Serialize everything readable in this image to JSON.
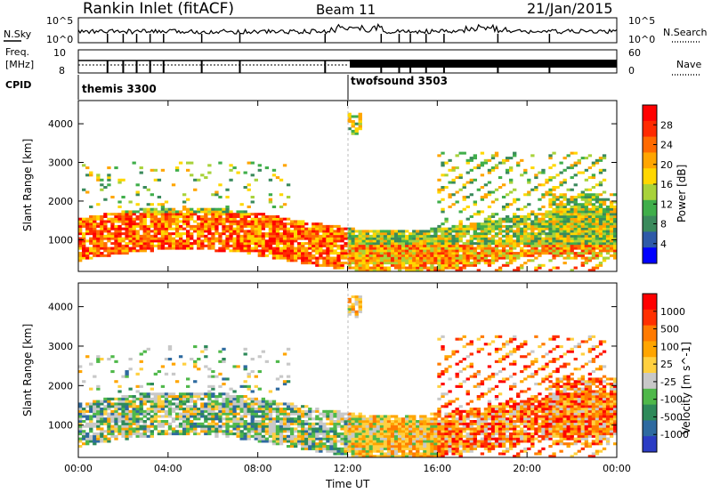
{
  "header": {
    "station": "Rankin Inlet (fitACF)",
    "beam": "Beam 11",
    "date": "21/Jan/2015"
  },
  "top_panels": {
    "nsky_label": "N.Sky",
    "nsky_ticks": [
      "10^5",
      "10^0"
    ],
    "nsearch_label": "N.Search",
    "nsearch_ticks": [
      "10^5",
      "10^0"
    ],
    "freq_label": "Freq.",
    "freq_unit": "[MHz]",
    "freq_ticks": [
      "10",
      "8"
    ],
    "nave_label": "Nave",
    "nave_ticks": [
      "60",
      "0"
    ],
    "cpid_label": "CPID",
    "cpid_modes": [
      {
        "name": "themis 3300",
        "start_hour": 0,
        "end_hour": 12
      },
      {
        "name": "twofsound 3503",
        "start_hour": 12,
        "end_hour": 24
      }
    ]
  },
  "colors": {
    "power_scale": [
      "#0000ff",
      "#2e5aa8",
      "#3a8a5c",
      "#3fae4a",
      "#a8d23a",
      "#ffd700",
      "#ffa500",
      "#ff6a00",
      "#ff2a00",
      "#ff0000"
    ],
    "velocity_scale": [
      "#2b3cc4",
      "#2e6aa0",
      "#2e8a5a",
      "#4fb84a",
      "#c8c8c8",
      "#ffd040",
      "#ffa500",
      "#ff7a00",
      "#ff3000",
      "#ff0000"
    ]
  },
  "chart_data": [
    {
      "type": "heatmap",
      "panel": "power",
      "ylabel": "Slant Range [km]",
      "xlabel": "Time UT",
      "x_ticks": [
        "00:00",
        "04:00",
        "08:00",
        "12:00",
        "16:00",
        "20:00",
        "00:00"
      ],
      "xlim_hours": [
        0,
        24
      ],
      "y_ticks": [
        1000,
        2000,
        3000,
        4000
      ],
      "ylim_km": [
        180,
        4600
      ],
      "colorbar": {
        "label": "Power [dB]",
        "ticks": [
          "28",
          "24",
          "20",
          "16",
          "12",
          "8",
          "4"
        ],
        "range": [
          0,
          30
        ]
      }
    },
    {
      "type": "heatmap",
      "panel": "velocity",
      "ylabel": "Slant Range [km]",
      "xlabel": "Time UT",
      "x_ticks": [
        "00:00",
        "04:00",
        "08:00",
        "12:00",
        "16:00",
        "20:00",
        "00:00"
      ],
      "xlim_hours": [
        0,
        24
      ],
      "y_ticks": [
        1000,
        2000,
        3000,
        4000
      ],
      "ylim_km": [
        180,
        4600
      ],
      "colorbar": {
        "label": "Velocity [m s^-1]",
        "ticks": [
          "1000",
          "500",
          "100",
          "25",
          "-25",
          "-100",
          "-500",
          "-1000"
        ],
        "range": [
          -1000,
          1000
        ]
      }
    }
  ]
}
